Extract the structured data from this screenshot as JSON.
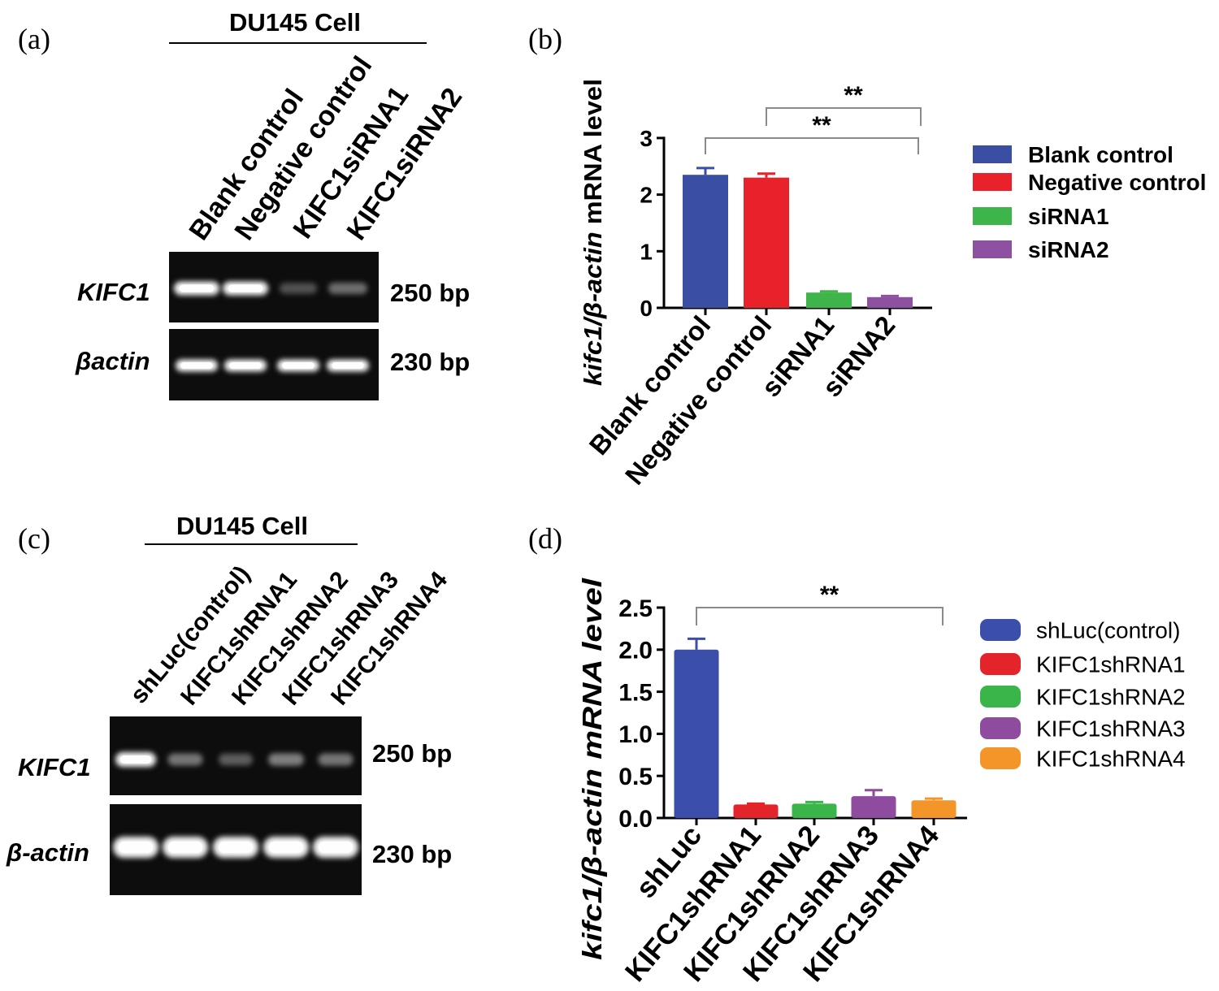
{
  "figure": {
    "panel_a": {
      "label": "(a)",
      "header": "DU145 Cell",
      "lanes": [
        "Blank control",
        "Negative control",
        "KIFC1siRNA1",
        "KIFC1siRNA2"
      ],
      "gel_rows": [
        {
          "gene": "KIFC1",
          "size": "250 bp",
          "band_intensity": [
            1.0,
            1.0,
            0.3,
            0.42
          ]
        },
        {
          "gene": "βactin",
          "size": "230 bp",
          "band_intensity": [
            1.0,
            1.0,
            1.0,
            1.0
          ]
        }
      ]
    },
    "panel_b": {
      "label": "(b)"
    },
    "panel_c": {
      "label": "(c)",
      "header": "DU145 Cell",
      "lanes": [
        "shLuc(control)",
        "KIFC1shRNA1",
        "KIFC1shRNA2",
        "KIFC1shRNA3",
        "KIFC1shRNA4"
      ],
      "gel_rows": [
        {
          "gene": "KIFC1",
          "size": "250 bp",
          "band_intensity": [
            1.0,
            0.45,
            0.35,
            0.5,
            0.45
          ]
        },
        {
          "gene": "β-actin",
          "size": "230 bp",
          "band_intensity": [
            1.0,
            1.0,
            1.0,
            1.0,
            1.0
          ]
        }
      ]
    },
    "panel_d": {
      "label": "(d)"
    }
  },
  "chart_data": [
    {
      "type": "bar",
      "categories": [
        "Blank control",
        "Negative control",
        "siRNA1",
        "siRNA2"
      ],
      "values": [
        2.35,
        2.3,
        0.27,
        0.19
      ],
      "errors": [
        0.12,
        0.07,
        0.02,
        0.02
      ],
      "colors": [
        "#3a4fa3",
        "#e8212b",
        "#3db54a",
        "#8e50a0"
      ],
      "title": "",
      "xlabel": "",
      "ylabel": "kifc1/β-actin mRNA level",
      "ylim": [
        0,
        3
      ],
      "yticks": [
        0,
        1,
        2,
        3
      ],
      "ytick_labels": [
        "0",
        "1",
        "2",
        "3"
      ],
      "grid": false,
      "legend": {
        "position": "right",
        "entries": [
          "Blank control",
          "Negative control",
          "siRNA1",
          "siRNA2"
        ]
      },
      "annotations": [
        {
          "text": "**",
          "from": "Blank control",
          "to": "siRNA2"
        },
        {
          "text": "**",
          "from": "Negative control",
          "to": "siRNA2"
        }
      ]
    },
    {
      "type": "bar",
      "categories": [
        "shLuc",
        "KIFC1shRNA1",
        "KIFC1shRNA2",
        "KIFC1shRNA3",
        "KIFC1shRNA4"
      ],
      "values": [
        2.0,
        0.16,
        0.17,
        0.26,
        0.21
      ],
      "errors": [
        0.13,
        0.01,
        0.02,
        0.07,
        0.02
      ],
      "colors": [
        "#3b4ea9",
        "#e3242b",
        "#3ab54a",
        "#8f4b9e",
        "#f4952a"
      ],
      "title": "",
      "xlabel": "",
      "ylabel": "kifc1/β-actin mRNA level",
      "ylim": [
        0,
        2.5
      ],
      "yticks": [
        0,
        0.5,
        1.0,
        1.5,
        2.0,
        2.5
      ],
      "ytick_labels": [
        "0.0",
        "0.5",
        "1.0",
        "1.5",
        "2.0",
        "2.5"
      ],
      "grid": false,
      "legend": {
        "position": "right",
        "entries": [
          "shLuc(control)",
          "KIFC1shRNA1",
          "KIFC1shRNA2",
          "KIFC1shRNA3",
          "KIFC1shRNA4"
        ]
      },
      "annotations": [
        {
          "text": "**",
          "from": "shLuc",
          "to": "KIFC1shRNA4"
        }
      ]
    }
  ]
}
